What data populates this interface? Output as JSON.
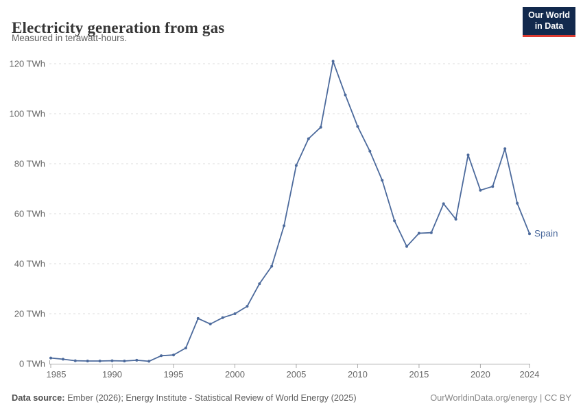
{
  "header": {
    "title": "Electricity generation from gas",
    "subtitle": "Measured in terawatt-hours."
  },
  "logo": {
    "line1": "Our World",
    "line2": "in Data"
  },
  "chart_data": {
    "type": "line",
    "title": "Electricity generation from gas",
    "unit": "TWh",
    "xlim": [
      1985,
      2024
    ],
    "ylim": [
      0,
      120
    ],
    "grid": "horizontal-dashed",
    "legend_position": "end-of-line-label",
    "end_label": "Spain",
    "series": [
      {
        "name": "Spain",
        "color": "#4c6a9c",
        "x": [
          1985,
          1986,
          1987,
          1988,
          1989,
          1990,
          1991,
          1992,
          1993,
          1994,
          1995,
          1996,
          1997,
          1998,
          1999,
          2000,
          2001,
          2002,
          2003,
          2004,
          2005,
          2006,
          2007,
          2008,
          2009,
          2010,
          2011,
          2012,
          2013,
          2014,
          2015,
          2016,
          2017,
          2018,
          2019,
          2020,
          2021,
          2022,
          2023,
          2024
        ],
        "values": [
          2.3,
          1.8,
          1.2,
          1.1,
          1.1,
          1.2,
          1.1,
          1.4,
          1.0,
          3.2,
          3.5,
          6.3,
          18.1,
          15.9,
          18.4,
          20.0,
          23.0,
          32.0,
          39.0,
          55.2,
          79.3,
          90.0,
          94.6,
          121.0,
          107.5,
          94.9,
          85.0,
          73.4,
          57.2,
          46.9,
          52.2,
          52.4,
          64.0,
          57.8,
          83.5,
          69.4,
          70.9,
          86.0,
          64.2,
          52.0
        ]
      }
    ],
    "yticks": [
      {
        "value": 0,
        "label": "0 TWh"
      },
      {
        "value": 20,
        "label": "20 TWh"
      },
      {
        "value": 40,
        "label": "40 TWh"
      },
      {
        "value": 60,
        "label": "60 TWh"
      },
      {
        "value": 80,
        "label": "80 TWh"
      },
      {
        "value": 100,
        "label": "100 TWh"
      },
      {
        "value": 120,
        "label": "120 TWh"
      }
    ],
    "xticks": [
      {
        "value": 1985,
        "label": "1985"
      },
      {
        "value": 1990,
        "label": "1990"
      },
      {
        "value": 1995,
        "label": "1995"
      },
      {
        "value": 2000,
        "label": "2000"
      },
      {
        "value": 2005,
        "label": "2005"
      },
      {
        "value": 2010,
        "label": "2010"
      },
      {
        "value": 2015,
        "label": "2015"
      },
      {
        "value": 2020,
        "label": "2020"
      },
      {
        "value": 2024,
        "label": "2024"
      }
    ]
  },
  "footer": {
    "source_bold": "Data source:",
    "source_rest": " Ember (2026); Energy Institute - Statistical Review of World Energy (2025)",
    "right": "OurWorldinData.org/energy | CC BY"
  },
  "colors": {
    "line": "#4c6a9c",
    "grid": "#dddddd",
    "axis": "#a9a9a9",
    "tick_label": "#666666",
    "logo_bg": "#12294d",
    "logo_red": "#dc3a30"
  }
}
